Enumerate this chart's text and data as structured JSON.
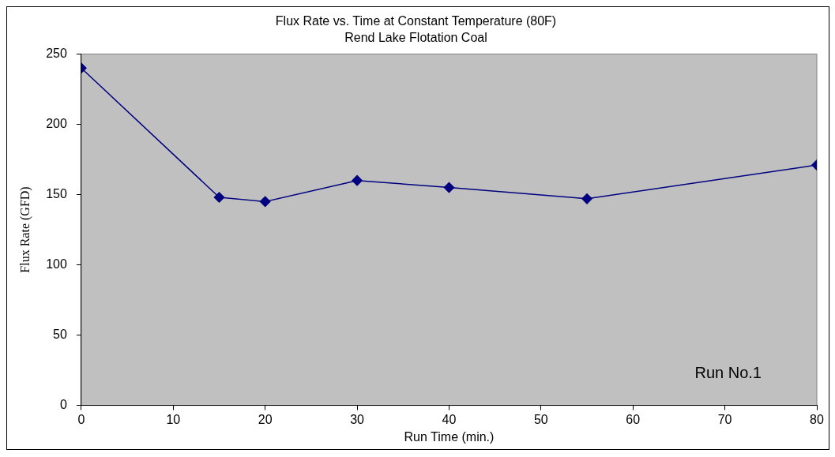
{
  "chart_data": {
    "type": "line",
    "title": "Flux Rate vs. Time at Constant Temperature (80F)",
    "subtitle": "Rend Lake Flotation Coal",
    "xlabel": "Run Time (min.)",
    "ylabel": "Flux Rate (GFD)",
    "x": [
      0,
      15,
      20,
      30,
      40,
      55,
      80
    ],
    "series": [
      {
        "color": "#000080",
        "values": [
          240,
          148,
          145,
          160,
          155,
          147,
          171
        ]
      }
    ],
    "xlim": [
      0,
      80
    ],
    "xticks": [
      0,
      10,
      20,
      30,
      40,
      50,
      60,
      70,
      80
    ],
    "ylim": [
      0,
      250
    ],
    "yticks": [
      0,
      50,
      100,
      150,
      200,
      250
    ],
    "grid": false,
    "legend": false,
    "marker": "diamond",
    "line_style": "solid",
    "annotations": [
      "Run No.1"
    ]
  }
}
